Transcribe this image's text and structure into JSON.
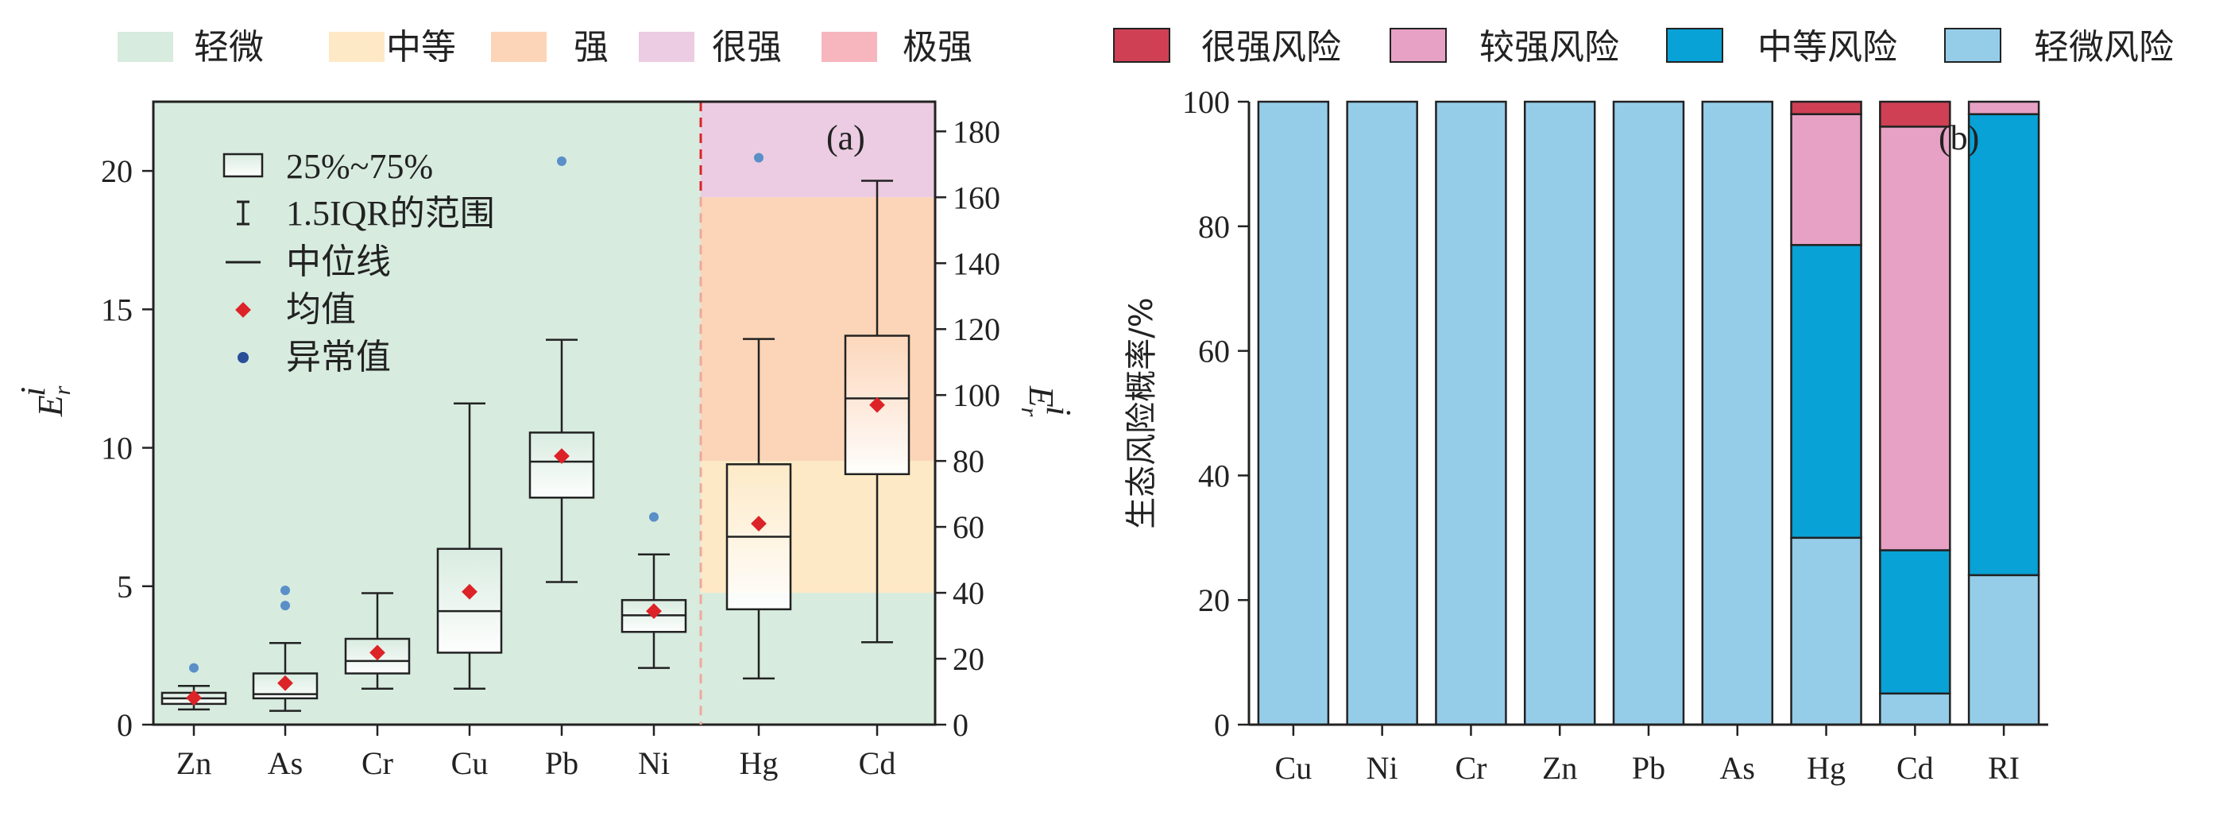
{
  "top_legend_left": [
    {
      "label": "轻微",
      "color": "#d7ebdf"
    },
    {
      "label": "中等",
      "color": "#fde9c5"
    },
    {
      "label": "强",
      "color": "#fcd5b8"
    },
    {
      "label": "很强",
      "color": "#eccce2"
    },
    {
      "label": "极强",
      "color": "#f7b6bd"
    }
  ],
  "top_legend_right": [
    {
      "label": "很强风险",
      "color": "#cf4054"
    },
    {
      "label": "较强风险",
      "color": "#e7a1c4"
    },
    {
      "label": "中等风险",
      "color": "#08a2d6"
    },
    {
      "label": "轻微风险",
      "color": "#95cde9"
    }
  ],
  "inner_legend": {
    "box": "25%~75%",
    "whisker": "1.5IQR的范围",
    "median": "中位线",
    "mean": "均值",
    "outlier": "异常值"
  },
  "colors": {
    "mean": "#dc2328",
    "outlier_left": "#5a8fc8",
    "outlier_right": "#2a4f98",
    "divider": "#dc2328",
    "divider_light": "#f0a898"
  },
  "chart_data": [
    {
      "type": "box",
      "panel_label": "(a)",
      "ylabel_left": {
        "main": "E",
        "sup": "i",
        "sub": "r"
      },
      "ylabel_right": {
        "main": "E",
        "sup": "i",
        "sub": "r"
      },
      "ylim_left": [
        0,
        22.5
      ],
      "ylim_right": [
        0,
        189
      ],
      "yticks_left": [
        0,
        5,
        10,
        15,
        20
      ],
      "yticks_right": [
        0,
        20,
        40,
        60,
        80,
        100,
        120,
        140,
        160,
        180
      ],
      "left_axis_categories": [
        "Zn",
        "As",
        "Cr",
        "Cu",
        "Pb",
        "Ni"
      ],
      "right_axis_categories": [
        "Hg",
        "Cd"
      ],
      "risk_bands_left_axis": {
        "levels": [
          "轻微"
        ],
        "thresholds": [
          0,
          22.5
        ]
      },
      "risk_bands_right_axis": {
        "levels": [
          "轻微",
          "中等",
          "强",
          "很强"
        ],
        "thresholds": [
          0,
          40,
          80,
          160,
          189
        ]
      },
      "boxes": [
        {
          "name": "Zn",
          "axis": "left",
          "whisker_low": 0.55,
          "q1": 0.75,
          "median": 0.95,
          "q3": 1.15,
          "whisker_high": 1.4,
          "mean": 0.97,
          "outliers": [
            2.05
          ]
        },
        {
          "name": "As",
          "axis": "left",
          "whisker_low": 0.5,
          "q1": 0.95,
          "median": 1.1,
          "q3": 1.85,
          "whisker_high": 2.95,
          "mean": 1.5,
          "outliers": [
            4.3,
            4.85
          ]
        },
        {
          "name": "Cr",
          "axis": "left",
          "whisker_low": 1.3,
          "q1": 1.85,
          "median": 2.3,
          "q3": 3.1,
          "whisker_high": 4.75,
          "mean": 2.6,
          "outliers": []
        },
        {
          "name": "Cu",
          "axis": "left",
          "whisker_low": 1.3,
          "q1": 2.6,
          "median": 4.1,
          "q3": 6.35,
          "whisker_high": 11.6,
          "mean": 4.8,
          "outliers": []
        },
        {
          "name": "Pb",
          "axis": "left",
          "whisker_low": 5.15,
          "q1": 8.2,
          "median": 9.5,
          "q3": 10.55,
          "whisker_high": 13.9,
          "mean": 9.7,
          "outliers": [
            20.35
          ]
        },
        {
          "name": "Ni",
          "axis": "left",
          "whisker_low": 2.05,
          "q1": 3.35,
          "median": 3.95,
          "q3": 4.5,
          "whisker_high": 6.15,
          "mean": 4.1,
          "outliers": [
            7.5
          ]
        },
        {
          "name": "Hg",
          "axis": "right",
          "whisker_low": 14,
          "q1": 35,
          "median": 57,
          "q3": 79,
          "whisker_high": 117,
          "mean": 61,
          "outliers": [
            172
          ]
        },
        {
          "name": "Cd",
          "axis": "right",
          "whisker_low": 25,
          "q1": 76,
          "median": 99,
          "q3": 118,
          "whisker_high": 165,
          "mean": 97,
          "outliers": []
        }
      ]
    },
    {
      "type": "stacked_bar",
      "panel_label": "(b)",
      "ylabel": "生态风险概率/%",
      "ylim": [
        0,
        100
      ],
      "yticks": [
        0,
        20,
        40,
        60,
        80,
        100
      ],
      "categories": [
        "Cu",
        "Ni",
        "Cr",
        "Zn",
        "Pb",
        "As",
        "Hg",
        "Cd",
        "RI"
      ],
      "series": [
        {
          "name": "轻微风险",
          "values": [
            100,
            100,
            100,
            100,
            100,
            100,
            30,
            5,
            24
          ]
        },
        {
          "name": "中等风险",
          "values": [
            0,
            0,
            0,
            0,
            0,
            0,
            47,
            23,
            74
          ]
        },
        {
          "name": "较强风险",
          "values": [
            0,
            0,
            0,
            0,
            0,
            0,
            21,
            68,
            2
          ]
        },
        {
          "name": "很强风险",
          "values": [
            0,
            0,
            0,
            0,
            0,
            0,
            2,
            4,
            0
          ]
        }
      ]
    }
  ]
}
